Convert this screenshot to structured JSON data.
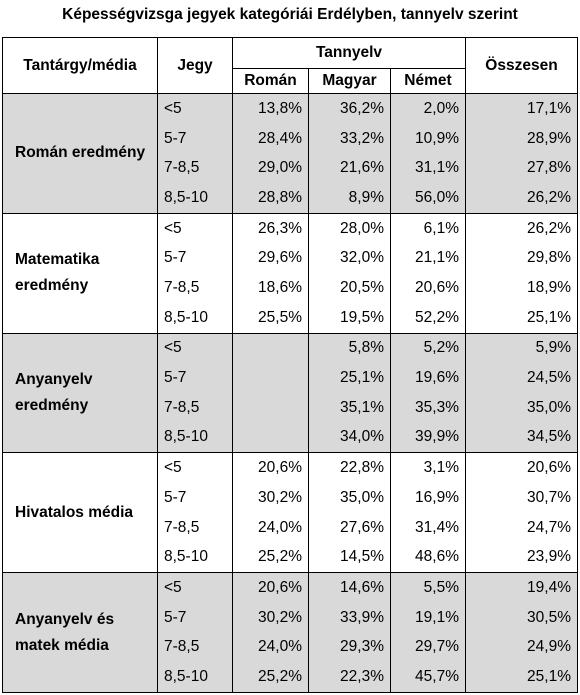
{
  "title": "Képességvizsga jegyek kategóriái Erdélyben, tannyelv szerint",
  "header": {
    "subject": "Tantárgy/média",
    "grade": "Jegy",
    "language": "Tannyelv",
    "roman": "Román",
    "magyar": "Magyar",
    "nemet": "Német",
    "total": "Összesen"
  },
  "groups": [
    {
      "subject": "Román eredmény",
      "shaded": true,
      "rows": [
        {
          "grade": "<5",
          "roman": "13,8%",
          "magyar": "36,2%",
          "nemet": "2,0%",
          "total": "17,1%"
        },
        {
          "grade": "5-7",
          "roman": "28,4%",
          "magyar": "33,2%",
          "nemet": "10,9%",
          "total": "28,9%"
        },
        {
          "grade": "7-8,5",
          "roman": "29,0%",
          "magyar": "21,6%",
          "nemet": "31,1%",
          "total": "27,8%"
        },
        {
          "grade": "8,5-10",
          "roman": "28,8%",
          "magyar": "8,9%",
          "nemet": "56,0%",
          "total": "26,2%"
        }
      ]
    },
    {
      "subject": "Matematika eredmény",
      "shaded": false,
      "rows": [
        {
          "grade": "<5",
          "roman": "26,3%",
          "magyar": "28,0%",
          "nemet": "6,1%",
          "total": "26,2%"
        },
        {
          "grade": "5-7",
          "roman": "29,6%",
          "magyar": "32,0%",
          "nemet": "21,1%",
          "total": "29,8%"
        },
        {
          "grade": "7-8,5",
          "roman": "18,6%",
          "magyar": "20,5%",
          "nemet": "20,6%",
          "total": "18,9%"
        },
        {
          "grade": "8,5-10",
          "roman": "25,5%",
          "magyar": "19,5%",
          "nemet": "52,2%",
          "total": "25,1%"
        }
      ]
    },
    {
      "subject": "Anyanyelv eredmény",
      "shaded": true,
      "rows": [
        {
          "grade": "<5",
          "roman": "",
          "magyar": "5,8%",
          "nemet": "5,2%",
          "total": "5,9%"
        },
        {
          "grade": "5-7",
          "roman": "",
          "magyar": "25,1%",
          "nemet": "19,6%",
          "total": "24,5%"
        },
        {
          "grade": "7-8,5",
          "roman": "",
          "magyar": "35,1%",
          "nemet": "35,3%",
          "total": "35,0%"
        },
        {
          "grade": "8,5-10",
          "roman": "",
          "magyar": "34,0%",
          "nemet": "39,9%",
          "total": "34,5%"
        }
      ]
    },
    {
      "subject": "Hivatalos média",
      "shaded": false,
      "rows": [
        {
          "grade": "<5",
          "roman": "20,6%",
          "magyar": "22,8%",
          "nemet": "3,1%",
          "total": "20,6%"
        },
        {
          "grade": "5-7",
          "roman": "30,2%",
          "magyar": "35,0%",
          "nemet": "16,9%",
          "total": "30,7%"
        },
        {
          "grade": "7-8,5",
          "roman": "24,0%",
          "magyar": "27,6%",
          "nemet": "31,4%",
          "total": "24,7%"
        },
        {
          "grade": "8,5-10",
          "roman": "25,2%",
          "magyar": "14,5%",
          "nemet": "48,6%",
          "total": "23,9%"
        }
      ]
    },
    {
      "subject": "Anyanyelv és matek média",
      "shaded": true,
      "rows": [
        {
          "grade": "<5",
          "roman": "20,6%",
          "magyar": "14,6%",
          "nemet": "5,5%",
          "total": "19,4%"
        },
        {
          "grade": "5-7",
          "roman": "30,2%",
          "magyar": "33,9%",
          "nemet": "19,1%",
          "total": "30,5%"
        },
        {
          "grade": "7-8,5",
          "roman": "24,0%",
          "magyar": "29,3%",
          "nemet": "29,7%",
          "total": "24,9%"
        },
        {
          "grade": "8,5-10",
          "roman": "25,2%",
          "magyar": "22,3%",
          "nemet": "45,7%",
          "total": "25,1%"
        }
      ]
    }
  ]
}
